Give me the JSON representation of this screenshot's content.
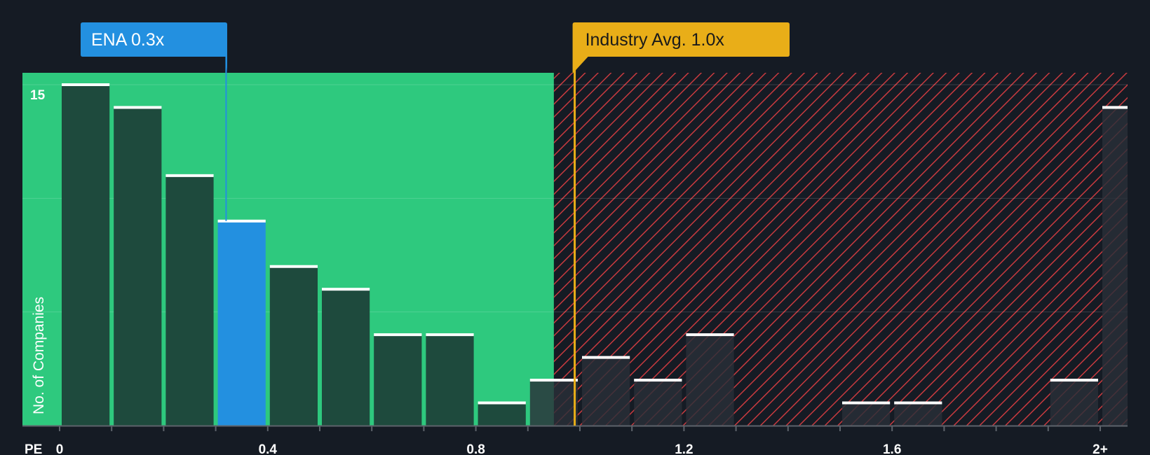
{
  "chart_data": {
    "type": "bar",
    "title": "",
    "xlabel": "PE",
    "ylabel": "No. of Companies",
    "x_ticks": [
      "0",
      "0.4",
      "0.8",
      "1.2",
      "1.6",
      "2+"
    ],
    "y_ticks": [
      "15"
    ],
    "ylim": [
      0,
      15.5
    ],
    "xlim": [
      0,
      2.05
    ],
    "bin_width": 0.1,
    "bin_starts": [
      0.0,
      0.1,
      0.2,
      0.3,
      0.4,
      0.5,
      0.6,
      0.7,
      0.8,
      0.9,
      1.0,
      1.1,
      1.2,
      1.3,
      1.4,
      1.5,
      1.6,
      1.7,
      1.8,
      1.9,
      2.0
    ],
    "values": [
      15,
      14,
      11,
      9,
      7,
      6,
      4,
      4,
      1,
      2,
      3,
      2,
      4,
      0,
      0,
      1,
      1,
      0,
      0,
      2,
      14
    ],
    "highlight_bin": 3,
    "fair_zone_end": 0.95,
    "company": {
      "label": "ENA 0.3x",
      "value": 0.32
    },
    "industry": {
      "label": "Industry Avg. 1.0x",
      "value": 0.99
    }
  },
  "colors": {
    "background": "#151b24",
    "fair_zone": "#2ec97e",
    "bar": "#1e4a3d",
    "bar_in_red": "#2a2f38",
    "highlight": "#2390e0",
    "bar_cap": "#ffffff",
    "hatch": "#c83a3f",
    "industry": "#e9ae18",
    "company_callout": "#2390e0"
  }
}
